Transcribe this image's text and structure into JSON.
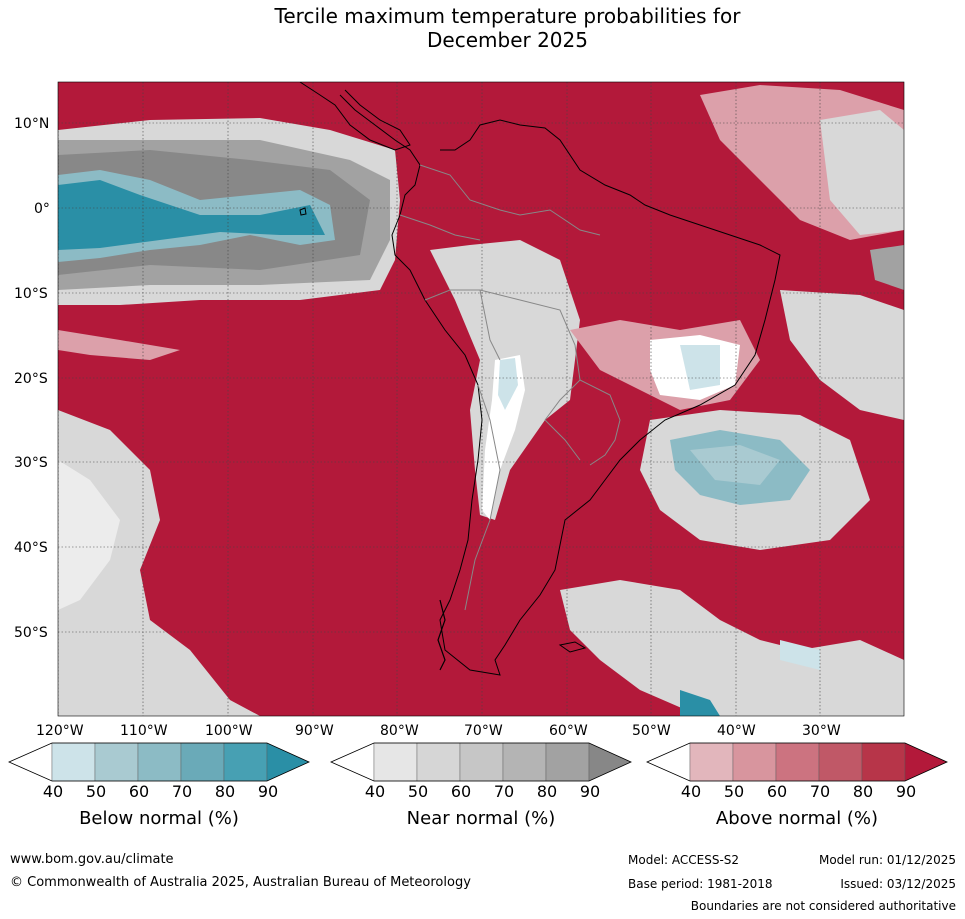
{
  "title": {
    "line1": "Tercile maximum temperature probabilities for",
    "line2": "December 2025"
  },
  "map": {
    "lat_labels": [
      "10°N",
      "0°",
      "10°S",
      "20°S",
      "30°S",
      "40°S",
      "50°S"
    ],
    "lon_labels": [
      "120°W",
      "110°W",
      "100°W",
      "90°W",
      "80°W",
      "70°W",
      "60°W",
      "50°W",
      "40°W",
      "30°W"
    ]
  },
  "legends": [
    {
      "title": "Below normal (%)",
      "ticks": [
        "40",
        "50",
        "60",
        "70",
        "80",
        "90"
      ],
      "colors": [
        "#ffffff",
        "#cde3e9",
        "#a9cad1",
        "#8cbbc5",
        "#6aaab8",
        "#47a0b3",
        "#2a8fa6"
      ]
    },
    {
      "title": "Near normal (%)",
      "ticks": [
        "40",
        "50",
        "60",
        "70",
        "80",
        "90"
      ],
      "colors": [
        "#ffffff",
        "#e6e6e6",
        "#d6d6d6",
        "#c6c6c6",
        "#b4b4b4",
        "#a2a2a2",
        "#878787"
      ]
    },
    {
      "title": "Above normal (%)",
      "ticks": [
        "40",
        "50",
        "60",
        "70",
        "80",
        "90"
      ],
      "colors": [
        "#ffffff",
        "#e2b6bc",
        "#d8959e",
        "#cc7380",
        "#c05867",
        "#b73549",
        "#b3193a"
      ]
    }
  ],
  "footer": {
    "website": "www.bom.gov.au/climate",
    "copyright": "© Commonwealth of Australia 2025, Australian Bureau of Meteorology",
    "model": "Model: ACCESS-S2",
    "model_run": "Model run: 01/12/2025",
    "base_period": "Base period: 1981-2018",
    "issued": "Issued: 03/12/2025",
    "disclaimer": "Boundaries are not considered authoritative"
  },
  "colors": {
    "above_high": "#b3193a",
    "above_mid": "#c8586a",
    "above_low": "#dca0aa",
    "near_high": "#888888",
    "near_mid": "#b4b4b4",
    "near_low": "#d8d8d8",
    "below_high": "#2a8fa6",
    "below_mid": "#8cbbc5",
    "below_low": "#cde3e9"
  }
}
